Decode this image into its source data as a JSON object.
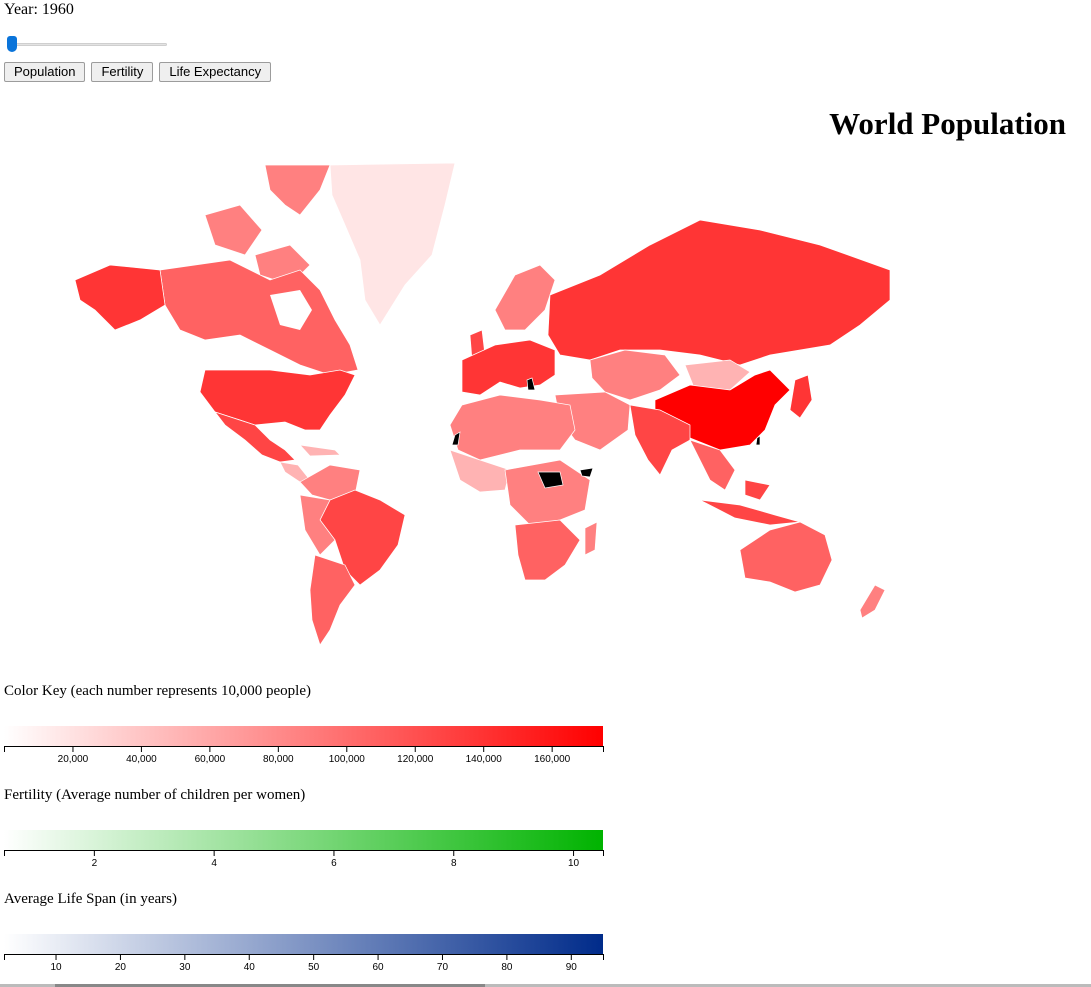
{
  "header": {
    "year_label": "Year: 1960",
    "slider": {
      "min": 1960,
      "max": 2015,
      "value": 1960,
      "thumb_color": "#0a74da"
    }
  },
  "buttons": [
    {
      "id": "population",
      "label": "Population"
    },
    {
      "id": "fertility",
      "label": "Fertility"
    },
    {
      "id": "life",
      "label": "Life Expectancy"
    }
  ],
  "title": "World Population",
  "map": {
    "no_data_color": "#000000",
    "colors": {
      "lightest": "#ffe5e5",
      "light": "#ffb3b3",
      "mid": "#ff8080",
      "midstrong": "#ff6262",
      "strong": "#ff4545",
      "stronger": "#ff3535",
      "max": "#ff0000"
    }
  },
  "legends": [
    {
      "label": "Color Key (each number represents 10,000 people)",
      "color_start": "#ffffff",
      "color_end": "#ff0000",
      "domain": [
        0,
        175000
      ],
      "ticks": [
        "20,000",
        "40,000",
        "60,000",
        "80,000",
        "100,000",
        "120,000",
        "140,000",
        "160,000"
      ],
      "tick_values": [
        20000,
        40000,
        60000,
        80000,
        100000,
        120000,
        140000,
        160000
      ]
    },
    {
      "label": "Fertility (Average number of children per women)",
      "color_start": "#ffffff",
      "color_end": "#00b300",
      "domain": [
        0.5,
        10.5
      ],
      "ticks": [
        "2",
        "4",
        "6",
        "8",
        "10"
      ],
      "tick_values": [
        2,
        4,
        6,
        8,
        10
      ]
    },
    {
      "label": "Average Life Span (in years)",
      "color_start": "#ffffff",
      "color_end": "#002b8a",
      "domain": [
        2,
        95
      ],
      "ticks": [
        "10",
        "20",
        "30",
        "40",
        "50",
        "60",
        "70",
        "80",
        "90"
      ],
      "tick_values": [
        10,
        20,
        30,
        40,
        50,
        60,
        70,
        80,
        90
      ]
    }
  ]
}
